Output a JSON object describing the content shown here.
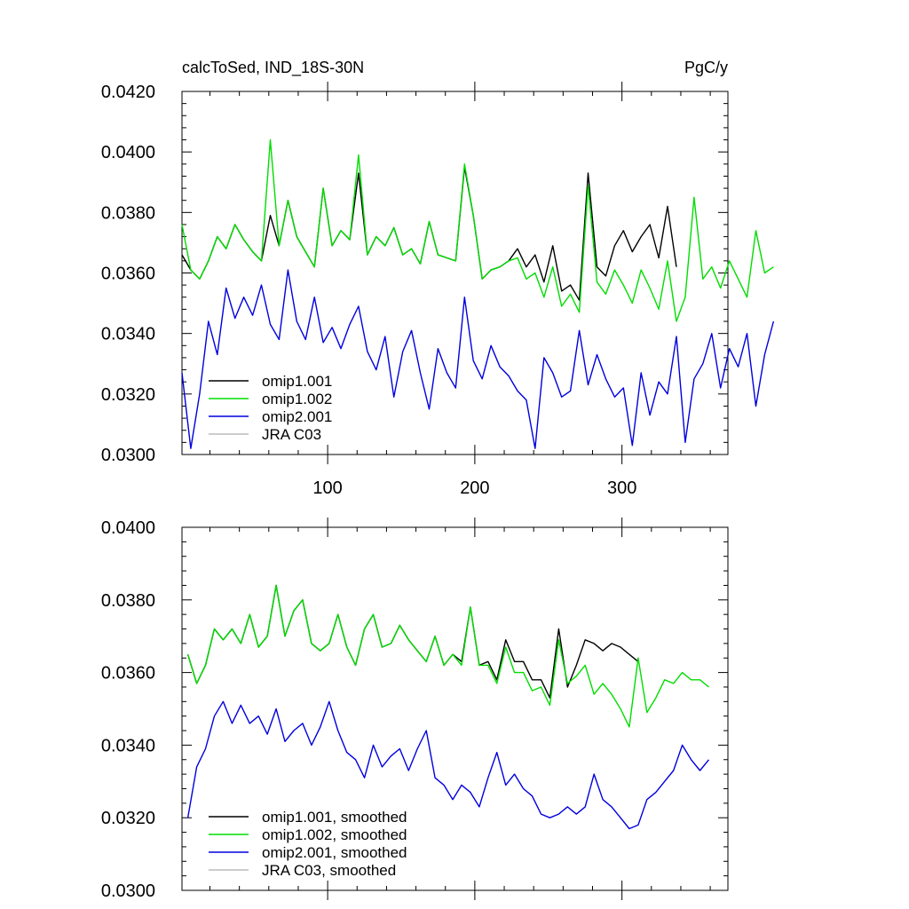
{
  "chart_data": [
    {
      "type": "line",
      "title": "calcToSed, IND_18S-30N",
      "units_label": "PgC/y",
      "xlabel": "",
      "ylabel": "",
      "xlim": [
        1,
        372
      ],
      "ylim": [
        0.03,
        0.042
      ],
      "x_ticks": [
        100,
        200,
        300
      ],
      "x_tick_labels": [
        "100",
        "200",
        "300"
      ],
      "y_ticks": [
        0.03,
        0.032,
        0.034,
        0.036,
        0.038,
        0.04,
        0.042
      ],
      "y_tick_labels": [
        "0.0300",
        "0.0320",
        "0.0340",
        "0.0360",
        "0.0380",
        "0.0400",
        "0.0420"
      ],
      "grid": false,
      "legend_position": "bottom-left",
      "series": [
        {
          "name": "omip1.001",
          "color": "#000000",
          "x_start": 1,
          "x_step": 6,
          "values": [
            0.0366,
            0.0361,
            0.0358,
            0.0364,
            0.0372,
            0.0368,
            0.0376,
            0.0371,
            0.0367,
            0.0364,
            0.0379,
            0.0369,
            0.0384,
            0.0372,
            0.0367,
            0.0362,
            0.0388,
            0.0369,
            0.0374,
            0.0371,
            0.0393,
            0.0366,
            0.0372,
            0.0369,
            0.0375,
            0.0366,
            0.0368,
            0.0363,
            0.0377,
            0.0366,
            0.0365,
            0.0364,
            0.0395,
            0.0379,
            0.0358,
            0.0361,
            0.0362,
            0.0364,
            0.0368,
            0.0362,
            0.0366,
            0.0357,
            0.0369,
            0.0354,
            0.0356,
            0.0351,
            0.0393,
            0.0362,
            0.0359,
            0.0369,
            0.0374,
            0.0367,
            0.0372,
            0.0376,
            0.0365,
            0.0382,
            0.0362
          ]
        },
        {
          "name": "omip1.002",
          "color": "#00dd00",
          "x_start": 1,
          "x_step": 6,
          "values": [
            0.0376,
            0.0361,
            0.0358,
            0.0364,
            0.0372,
            0.0368,
            0.0376,
            0.0371,
            0.0367,
            0.0364,
            0.0404,
            0.0369,
            0.0384,
            0.0372,
            0.0367,
            0.0362,
            0.0388,
            0.0369,
            0.0374,
            0.0371,
            0.0399,
            0.0366,
            0.0372,
            0.0369,
            0.0375,
            0.0366,
            0.0368,
            0.0363,
            0.0377,
            0.0366,
            0.0365,
            0.0364,
            0.0396,
            0.0379,
            0.0358,
            0.0361,
            0.0362,
            0.0364,
            0.0365,
            0.0358,
            0.036,
            0.0352,
            0.0362,
            0.0349,
            0.0353,
            0.0347,
            0.0389,
            0.0357,
            0.0353,
            0.0361,
            0.0356,
            0.035,
            0.0361,
            0.0355,
            0.0348,
            0.0364,
            0.0344,
            0.0352,
            0.0385,
            0.0358,
            0.0362,
            0.0355,
            0.0364,
            0.0358,
            0.0352,
            0.0374,
            0.036,
            0.0362
          ]
        },
        {
          "name": "omip2.001",
          "color": "#0000dd",
          "x_start": 1,
          "x_step": 6,
          "values": [
            0.0327,
            0.0302,
            0.032,
            0.0344,
            0.0333,
            0.0355,
            0.0345,
            0.0352,
            0.0346,
            0.0356,
            0.0343,
            0.0338,
            0.0361,
            0.0344,
            0.0338,
            0.0352,
            0.0337,
            0.0342,
            0.0335,
            0.0343,
            0.0349,
            0.0334,
            0.0328,
            0.0339,
            0.0319,
            0.0334,
            0.0341,
            0.0327,
            0.0315,
            0.0335,
            0.0327,
            0.0322,
            0.0352,
            0.0331,
            0.0325,
            0.0336,
            0.0329,
            0.0326,
            0.0321,
            0.0318,
            0.0302,
            0.0332,
            0.0327,
            0.0319,
            0.0321,
            0.0341,
            0.0323,
            0.0333,
            0.0325,
            0.0319,
            0.0322,
            0.0303,
            0.0327,
            0.0313,
            0.0324,
            0.032,
            0.0339,
            0.0304,
            0.0325,
            0.033,
            0.034,
            0.0322,
            0.0335,
            0.0329,
            0.034,
            0.0316,
            0.0333,
            0.0344
          ]
        },
        {
          "name": "JRA C03",
          "color": "#bbbbbb",
          "values": []
        }
      ]
    },
    {
      "type": "line",
      "title": "",
      "xlabel": "",
      "ylabel": "",
      "xlim": [
        1,
        372
      ],
      "ylim": [
        0.03,
        0.04
      ],
      "x_ticks": [
        100,
        200,
        300
      ],
      "y_ticks": [
        0.03,
        0.032,
        0.034,
        0.036,
        0.038,
        0.04
      ],
      "y_tick_labels": [
        "0.0300",
        "0.0320",
        "0.0340",
        "0.0360",
        "0.0380",
        "0.0400"
      ],
      "grid": false,
      "legend_position": "bottom-left",
      "series": [
        {
          "name": "omip1.001, smoothed",
          "color": "#000000",
          "x_start": 5,
          "x_step": 6,
          "values": [
            0.0365,
            0.0357,
            0.0362,
            0.0372,
            0.0369,
            0.0372,
            0.0368,
            0.0376,
            0.0367,
            0.037,
            0.0384,
            0.037,
            0.0377,
            0.038,
            0.0368,
            0.0366,
            0.0368,
            0.0376,
            0.0367,
            0.0362,
            0.0372,
            0.0376,
            0.0367,
            0.0368,
            0.0373,
            0.0369,
            0.0366,
            0.0363,
            0.037,
            0.0362,
            0.0365,
            0.0363,
            0.0378,
            0.0362,
            0.0363,
            0.0358,
            0.0369,
            0.0363,
            0.0363,
            0.0358,
            0.0358,
            0.0353,
            0.0372,
            0.0356,
            0.0362,
            0.0369,
            0.0368,
            0.0366,
            0.0368,
            0.0367,
            0.0365,
            0.0363
          ]
        },
        {
          "name": "omip1.002, smoothed",
          "color": "#00dd00",
          "x_start": 5,
          "x_step": 6,
          "values": [
            0.0365,
            0.0357,
            0.0362,
            0.0372,
            0.0369,
            0.0372,
            0.0368,
            0.0376,
            0.0367,
            0.037,
            0.0384,
            0.037,
            0.0377,
            0.038,
            0.0368,
            0.0366,
            0.0368,
            0.0376,
            0.0367,
            0.0362,
            0.0372,
            0.0376,
            0.0367,
            0.0368,
            0.0373,
            0.0369,
            0.0366,
            0.0363,
            0.037,
            0.0362,
            0.0365,
            0.0362,
            0.0378,
            0.0362,
            0.0362,
            0.0357,
            0.0367,
            0.036,
            0.036,
            0.0355,
            0.0356,
            0.0351,
            0.0369,
            0.0357,
            0.0359,
            0.0362,
            0.0354,
            0.0357,
            0.0354,
            0.035,
            0.0345,
            0.0364,
            0.0349,
            0.0353,
            0.0358,
            0.0357,
            0.036,
            0.0358,
            0.0358,
            0.0356
          ]
        },
        {
          "name": "omip2.001, smoothed",
          "color": "#0000dd",
          "x_start": 5,
          "x_step": 6,
          "values": [
            0.032,
            0.0334,
            0.0339,
            0.0348,
            0.0352,
            0.0346,
            0.0351,
            0.0346,
            0.0348,
            0.0343,
            0.035,
            0.0341,
            0.0344,
            0.0346,
            0.034,
            0.0345,
            0.0352,
            0.0344,
            0.0338,
            0.0336,
            0.0331,
            0.034,
            0.0334,
            0.0337,
            0.0339,
            0.0333,
            0.0339,
            0.0344,
            0.0331,
            0.0329,
            0.0325,
            0.0329,
            0.0327,
            0.0323,
            0.0331,
            0.0338,
            0.0329,
            0.0332,
            0.0328,
            0.0326,
            0.0321,
            0.032,
            0.0321,
            0.0323,
            0.0321,
            0.0323,
            0.0332,
            0.0325,
            0.0323,
            0.032,
            0.0317,
            0.0318,
            0.0325,
            0.0327,
            0.033,
            0.0333,
            0.034,
            0.0336,
            0.0333,
            0.0336
          ]
        },
        {
          "name": "JRA C03, smoothed",
          "color": "#bbbbbb",
          "values": []
        }
      ]
    }
  ]
}
